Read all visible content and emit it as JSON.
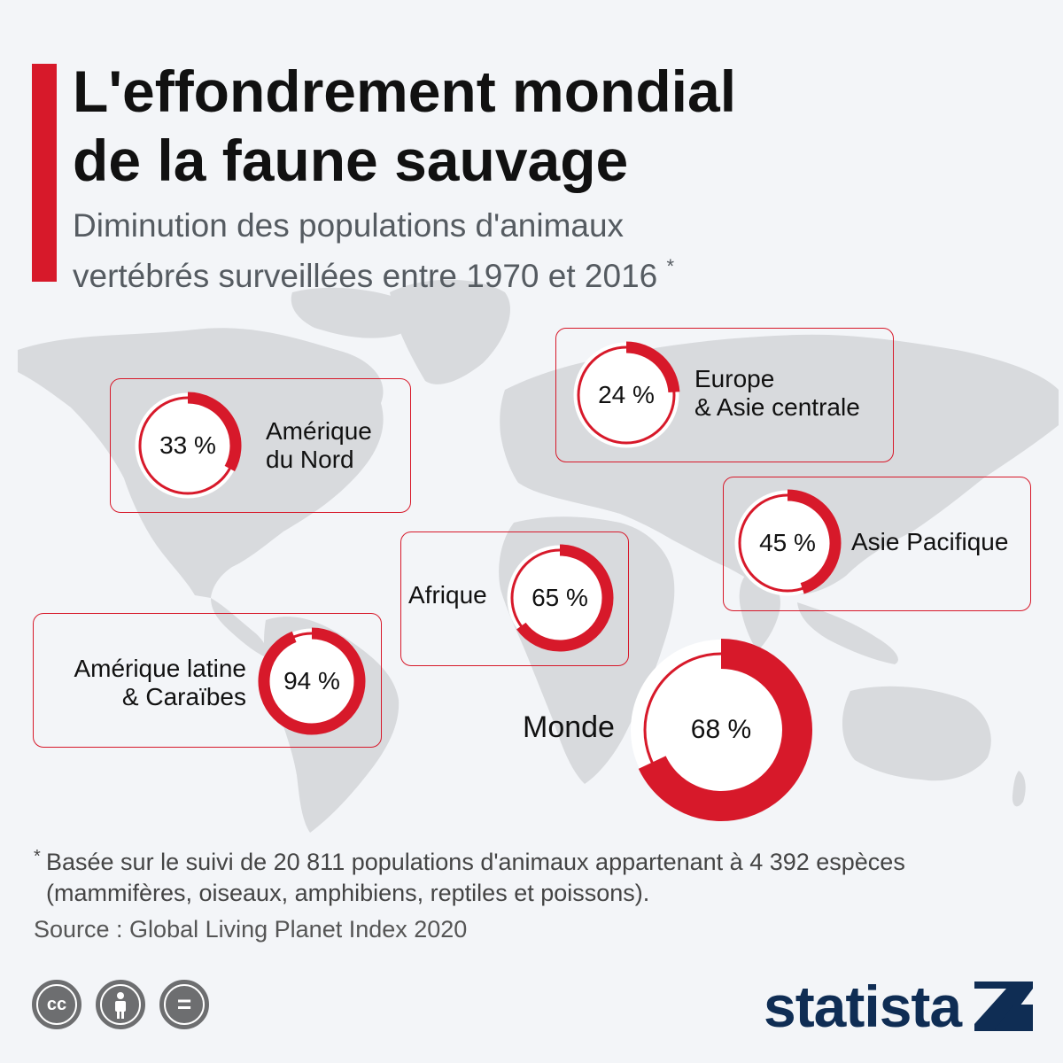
{
  "title": [
    "L'effondrement mondial",
    "de la faune sauvage"
  ],
  "subtitle": [
    "Diminution des populations d'animaux",
    "vertébrés surveillées entre 1970 et 2016"
  ],
  "subtitle_marker": "*",
  "colors": {
    "accent": "#d7192a",
    "ring_bg": "#ffffff",
    "map": "#d7d9dc",
    "text": "#111111",
    "logo": "#0f2d54"
  },
  "chart_data": {
    "type": "pie",
    "subtype": "donut",
    "unit": "%",
    "series": [
      {
        "name": "Amérique du Nord",
        "label_lines": [
          "Amérique",
          "du Nord"
        ],
        "value": 33,
        "label": "33 %"
      },
      {
        "name": "Europe & Asie centrale",
        "label_lines": [
          "Europe",
          "& Asie centrale"
        ],
        "value": 24,
        "label": "24 %"
      },
      {
        "name": "Asie Pacifique",
        "label_lines": [
          "Asie Pacifique"
        ],
        "value": 45,
        "label": "45 %"
      },
      {
        "name": "Afrique",
        "label_lines": [
          "Afrique"
        ],
        "value": 65,
        "label": "65 %"
      },
      {
        "name": "Amérique latine & Caraïbes",
        "label_lines": [
          "Amérique latine",
          "& Caraïbes"
        ],
        "value": 94,
        "label": "94 %"
      },
      {
        "name": "Monde",
        "label_lines": [
          "Monde"
        ],
        "value": 68,
        "label": "68 %"
      }
    ]
  },
  "footnote": {
    "marker": "*",
    "lines": [
      "Basée sur le suivi de 20 811 populations d'animaux appartenant à 4 392 espèces",
      "(mammifères, oiseaux, amphibiens, reptiles et poissons)."
    ]
  },
  "source": "Source : Global Living Planet Index 2020",
  "license_icons": [
    "cc-icon",
    "attribution-icon",
    "no-derivatives-icon"
  ],
  "license_marks": [
    "cc",
    "="
  ],
  "logo": "statista"
}
